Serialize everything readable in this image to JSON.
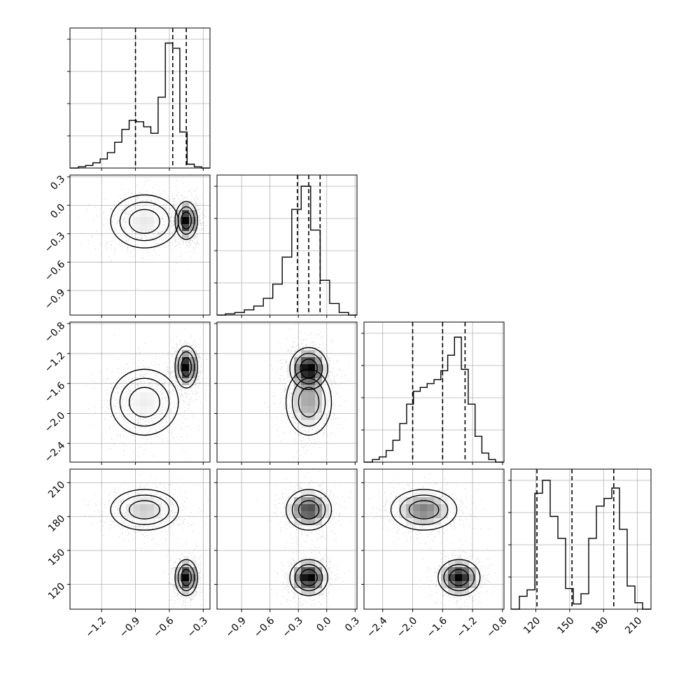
{
  "chart_data": {
    "type": "scatter",
    "layout": "corner-plot",
    "grid": true,
    "parameters": [
      {
        "index": 0,
        "range": [
          -1.48,
          -0.24
        ],
        "ticks": [
          -1.2,
          -0.9,
          -0.6,
          -0.3
        ],
        "tick_labels": [
          "−1.2",
          "−0.9",
          "−0.6",
          "−0.3"
        ],
        "quantiles": [
          -0.9,
          -0.57,
          -0.45
        ],
        "modes": [
          {
            "mean": -0.82,
            "sd": 0.14,
            "weight": 0.45
          },
          {
            "mean": -0.45,
            "sd": 0.045,
            "weight": 0.55
          }
        ]
      },
      {
        "index": 1,
        "range": [
          -1.16,
          0.32
        ],
        "ticks": [
          -0.9,
          -0.6,
          -0.3,
          0.0,
          0.3
        ],
        "tick_labels": [
          "−0.9",
          "−0.6",
          "−0.3",
          "0.0",
          "0.3"
        ],
        "quantiles": [
          -0.31,
          -0.19,
          -0.07
        ],
        "modes": [
          {
            "mean": -0.19,
            "sd": 0.12,
            "weight": 1.0
          }
        ]
      },
      {
        "index": 2,
        "range": [
          -2.65,
          -0.78
        ],
        "ticks": [
          -2.4,
          -2.0,
          -1.6,
          -1.2,
          -0.8
        ],
        "tick_labels": [
          "−2.4",
          "−2.0",
          "−1.6",
          "−1.2",
          "−0.8"
        ],
        "quantiles": [
          -2.0,
          -1.6,
          -1.3
        ],
        "modes": [
          {
            "mean": -1.85,
            "sd": 0.25,
            "weight": 0.45
          },
          {
            "mean": -1.38,
            "sd": 0.12,
            "weight": 0.55
          }
        ]
      },
      {
        "index": 3,
        "range": [
          98,
          222
        ],
        "ticks": [
          120,
          150,
          180,
          210
        ],
        "tick_labels": [
          "120",
          "150",
          "180",
          "210"
        ],
        "quantiles": [
          121,
          152,
          189
        ],
        "modes": [
          {
            "mean": 127,
            "sd": 8,
            "weight": 0.5
          },
          {
            "mean": 186,
            "sd": 9,
            "weight": 0.5
          }
        ]
      }
    ],
    "histograms": [
      {
        "param": 0,
        "bin_width": 0.047,
        "counts_relative": [
          0.01,
          0.02,
          0.04,
          0.07,
          0.12,
          0.2,
          0.3,
          0.37,
          0.36,
          0.32,
          0.27,
          0.55,
          0.97,
          0.93,
          0.28,
          0.03,
          0.01
        ]
      },
      {
        "param": 1,
        "bin_width": 0.06,
        "counts_relative": [
          0.01,
          0.02,
          0.04,
          0.07,
          0.13,
          0.24,
          0.45,
          0.82,
          1.0,
          0.66,
          0.27,
          0.09,
          0.02
        ]
      },
      {
        "param": 2,
        "bin_width": 0.08,
        "counts_relative": [
          0.02,
          0.04,
          0.09,
          0.17,
          0.3,
          0.45,
          0.55,
          0.58,
          0.61,
          0.64,
          0.71,
          0.83,
          0.97,
          0.72,
          0.45,
          0.2,
          0.07,
          0.02
        ]
      },
      {
        "param": 3,
        "bin_width": 5.5,
        "counts_relative": [
          0.1,
          0.15,
          0.9,
          1.0,
          0.72,
          0.55,
          0.16,
          0.04,
          0.12,
          0.55,
          0.8,
          0.86,
          0.94,
          0.62,
          0.18,
          0.05
        ]
      }
    ],
    "joint_modes": [
      {
        "params": [
          0,
          1
        ],
        "modes": [
          {
            "mean": [
              -0.82,
              -0.17
            ],
            "sd": [
              0.15,
              0.14
            ],
            "weight": 0.45
          },
          {
            "mean": [
              -0.45,
              -0.16
            ],
            "sd": [
              0.05,
              0.1
            ],
            "weight": 0.55
          }
        ]
      },
      {
        "params": [
          0,
          2
        ],
        "modes": [
          {
            "mean": [
              -0.82,
              -1.85
            ],
            "sd": [
              0.15,
              0.22
            ],
            "weight": 0.45
          },
          {
            "mean": [
              -0.45,
              -1.38
            ],
            "sd": [
              0.05,
              0.14
            ],
            "weight": 0.55
          }
        ]
      },
      {
        "params": [
          1,
          2
        ],
        "modes": [
          {
            "mean": [
              -0.19,
              -1.85
            ],
            "sd": [
              0.12,
              0.22
            ],
            "weight": 0.45
          },
          {
            "mean": [
              -0.19,
              -1.4
            ],
            "sd": [
              0.1,
              0.14
            ],
            "weight": 0.55
          }
        ]
      },
      {
        "params": [
          0,
          3
        ],
        "modes": [
          {
            "mean": [
              -0.82,
              186
            ],
            "sd": [
              0.15,
              9
            ],
            "weight": 0.5
          },
          {
            "mean": [
              -0.45,
              126
            ],
            "sd": [
              0.05,
              8
            ],
            "weight": 0.5
          }
        ]
      },
      {
        "params": [
          1,
          3
        ],
        "modes": [
          {
            "mean": [
              -0.19,
              186
            ],
            "sd": [
              0.12,
              9
            ],
            "weight": 0.5
          },
          {
            "mean": [
              -0.19,
              126
            ],
            "sd": [
              0.1,
              8
            ],
            "weight": 0.5
          }
        ]
      },
      {
        "params": [
          2,
          3
        ],
        "modes": [
          {
            "mean": [
              -1.85,
              186
            ],
            "sd": [
              0.22,
              9
            ],
            "weight": 0.5
          },
          {
            "mean": [
              -1.38,
              126
            ],
            "sd": [
              0.14,
              8
            ],
            "weight": 0.5
          }
        ]
      }
    ],
    "colors": {
      "line": "#000000",
      "grid": "#b0b0b0",
      "points": "#000000"
    },
    "title": "",
    "legend": "none"
  }
}
